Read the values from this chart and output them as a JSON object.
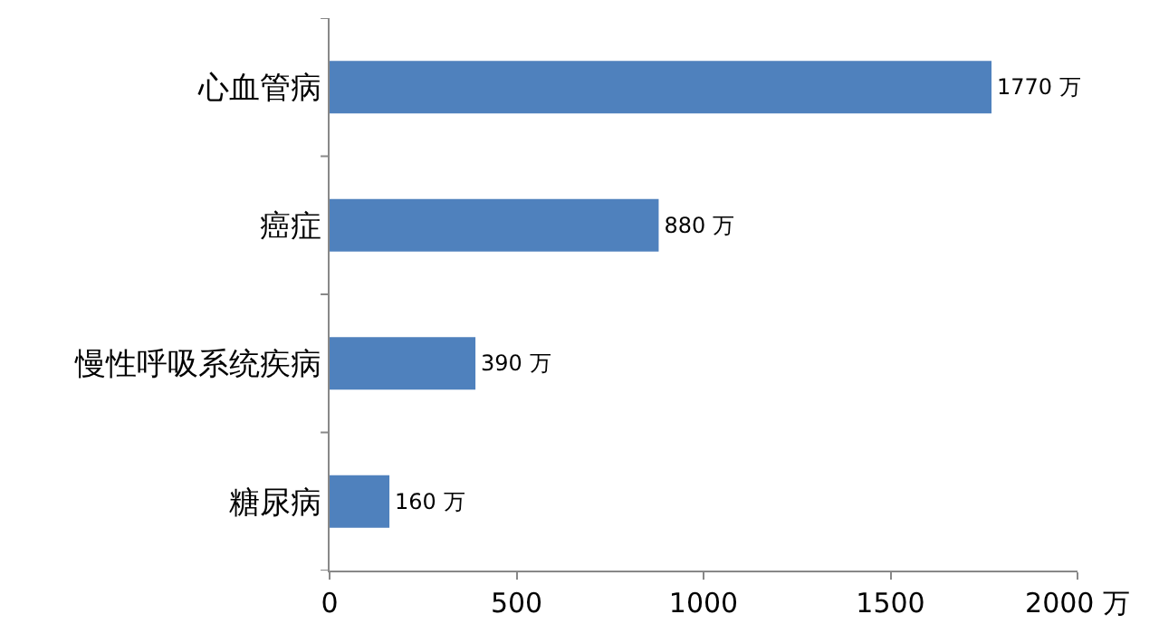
{
  "chart_data": {
    "type": "bar",
    "orientation": "horizontal",
    "categories": [
      "心血管病",
      "癌症",
      "慢性呼吸系统疾病",
      "糖尿病"
    ],
    "values": [
      1770,
      880,
      390,
      160
    ],
    "value_labels": [
      "1770 万",
      "880 万",
      "390 万",
      "160 万"
    ],
    "color": "#4f81bd",
    "xlim": [
      0,
      2000
    ],
    "xticks": [
      0,
      500,
      1000,
      1500,
      {
        "value": 2000,
        "label": "2000 万"
      }
    ],
    "grid": false,
    "legend": false
  }
}
